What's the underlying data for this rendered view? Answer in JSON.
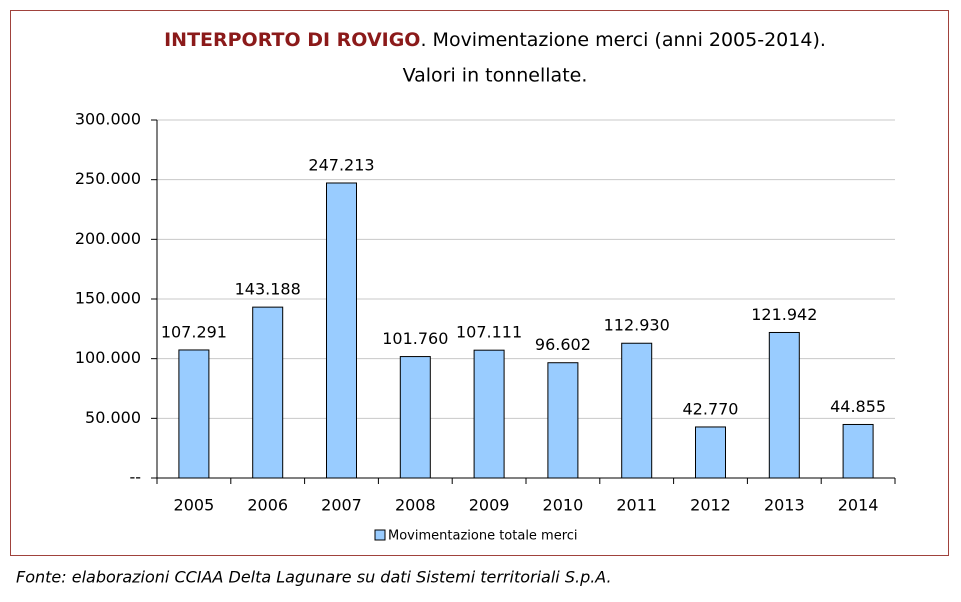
{
  "chart_data": {
    "type": "bar",
    "title_highlight": "INTERPORTO DI ROVIGO",
    "title": ". Movimentazione merci (anni 2005-2014).",
    "subtitle": "Valori in tonnellate.",
    "categories": [
      "2005",
      "2006",
      "2007",
      "2008",
      "2009",
      "2010",
      "2011",
      "2012",
      "2013",
      "2014"
    ],
    "series": [
      {
        "name": "Movimentazione totale merci",
        "color": "#99ccff",
        "values": [
          107291,
          143188,
          247213,
          101760,
          107111,
          96602,
          112930,
          42770,
          121942,
          44855
        ],
        "value_labels": [
          "107.291",
          "143.188",
          "247.213",
          "101.760",
          "107.111",
          "96.602",
          "112.930",
          "42.770",
          "121.942",
          "44.855"
        ]
      }
    ],
    "ylim": [
      0,
      300000
    ],
    "yticks": [
      {
        "value": 0,
        "label": "--"
      },
      {
        "value": 50000,
        "label": "50.000"
      },
      {
        "value": 100000,
        "label": "100.000"
      },
      {
        "value": 150000,
        "label": "150.000"
      },
      {
        "value": 200000,
        "label": "200.000"
      },
      {
        "value": 250000,
        "label": "250.000"
      },
      {
        "value": 300000,
        "label": "300.000"
      }
    ],
    "grid": true,
    "legend": "bottom",
    "source": "Fonte: elaborazioni CCIAA Delta Lagunare su dati Sistemi territoriali S.p.A."
  }
}
